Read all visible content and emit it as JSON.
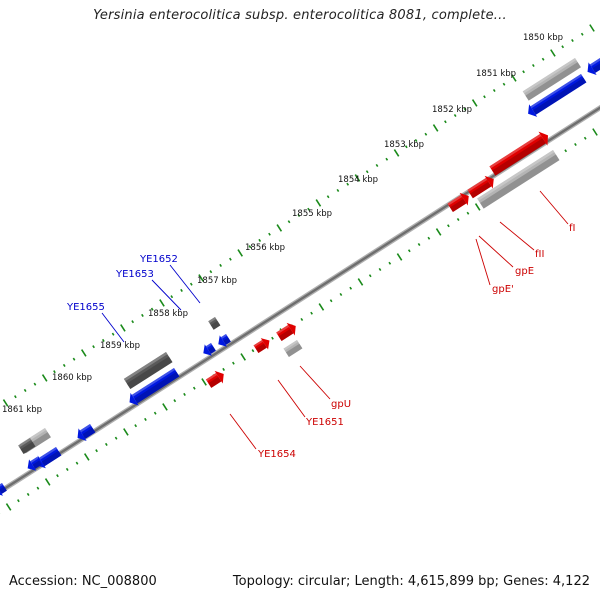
{
  "title": "Yersinia enterocolitica subsp. enterocolitica 8081, complete...",
  "footer": {
    "accession": "Accession: NC_008800",
    "summary": "Topology: circular; Length: 4,615,899 bp; Genes: 4,122"
  },
  "ticks": [
    {
      "kbp": 1850,
      "label": "1850 kbp"
    },
    {
      "kbp": 1851,
      "label": "1851 kbp"
    },
    {
      "kbp": 1852,
      "label": "1852 kbp"
    },
    {
      "kbp": 1853,
      "label": "1853 kbp"
    },
    {
      "kbp": 1854,
      "label": "1854 kbp"
    },
    {
      "kbp": 1855,
      "label": "1855 kbp"
    },
    {
      "kbp": 1856,
      "label": "1856 kbp"
    },
    {
      "kbp": 1857,
      "label": "1857 kbp"
    },
    {
      "kbp": 1858,
      "label": "1858 kbp"
    },
    {
      "kbp": 1859,
      "label": "1859 kbp"
    },
    {
      "kbp": 1860,
      "label": "1860 kbp"
    },
    {
      "kbp": 1861,
      "label": "1861 kbp"
    }
  ],
  "colors": {
    "forward_gene": "#e00000",
    "reverse_gene": "#0018e0",
    "gray_dark": "#5a5a5a",
    "gray_light": "#b4b4b4",
    "backbone": "#7a7a7a",
    "ticks": "#1a8a1a",
    "label_red": "#cc0000",
    "label_blue": "#0000cc"
  },
  "gene_labels": {
    "YE1652": "YE1652",
    "YE1653": "YE1653",
    "YE1655": "YE1655",
    "fI": "fI",
    "fII": "fII",
    "gpE": "gpE",
    "gpE_prime": "gpE'",
    "gpU": "gpU",
    "YE1651": "YE1651",
    "YE1654": "YE1654"
  }
}
